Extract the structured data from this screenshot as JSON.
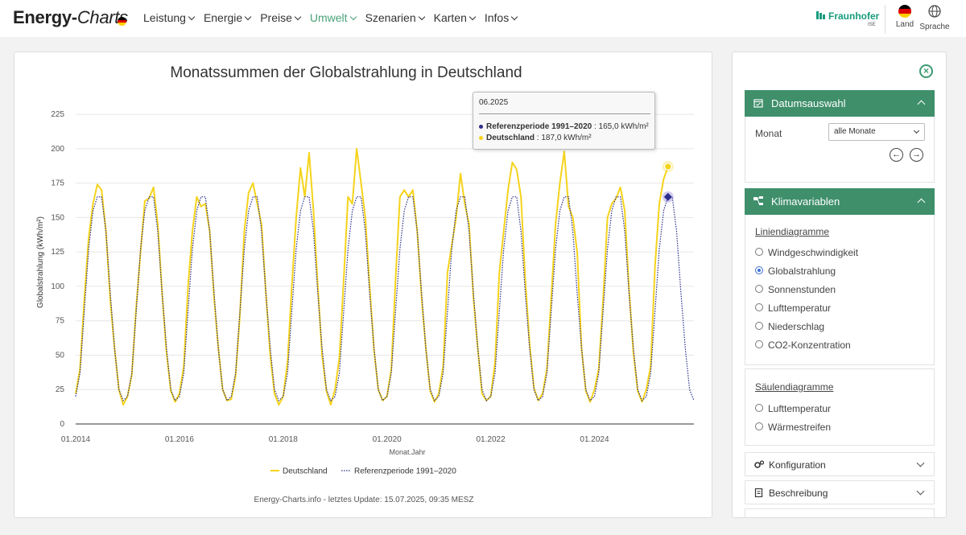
{
  "header": {
    "logo_main": "Energy-",
    "logo_italic": "Charts",
    "nav": [
      {
        "label": "Leistung",
        "active": false
      },
      {
        "label": "Energie",
        "active": false
      },
      {
        "label": "Preise",
        "active": false
      },
      {
        "label": "Umwelt",
        "active": true
      },
      {
        "label": "Szenarien",
        "active": false
      },
      {
        "label": "Karten",
        "active": false
      },
      {
        "label": "Infos",
        "active": false
      }
    ],
    "fraunhofer": "Fraunhofer",
    "fraunhofer_sub": "ISE",
    "land_label": "Land",
    "sprache_label": "Sprache",
    "accent_color": "#4aa37a",
    "fraunhofer_color": "#179c7d"
  },
  "chart_data": {
    "type": "line",
    "title": "Monatssummen der Globalstrahlung in Deutschland",
    "xlabel": "Monat.Jahr",
    "ylabel": "Globalstrahlung (kWh/m²)",
    "ylim": [
      0,
      235
    ],
    "yticks": [
      0,
      25,
      50,
      75,
      100,
      125,
      150,
      175,
      200,
      225
    ],
    "xticks": [
      "01.2014",
      "01.2016",
      "01.2018",
      "01.2020",
      "01.2022",
      "01.2024"
    ],
    "x_start": "01.2014",
    "x_end": "12.2025",
    "grid": true,
    "legend_position": "bottom",
    "series": [
      {
        "name": "Deutschland",
        "color": "#f5d31c",
        "style": "solid",
        "values": [
          22,
          40,
          90,
          135,
          160,
          174,
          170,
          140,
          90,
          55,
          25,
          14,
          20,
          36,
          85,
          125,
          162,
          164,
          172,
          145,
          95,
          52,
          24,
          16,
          22,
          42,
          100,
          140,
          165,
          158,
          160,
          140,
          92,
          55,
          25,
          17,
          18,
          35,
          80,
          140,
          168,
          175,
          160,
          145,
          95,
          50,
          22,
          14,
          20,
          45,
          100,
          150,
          186,
          165,
          197,
          155,
          100,
          50,
          24,
          14,
          25,
          48,
          105,
          165,
          160,
          200,
          175,
          150,
          100,
          54,
          25,
          17,
          20,
          40,
          105,
          165,
          170,
          165,
          170,
          140,
          92,
          55,
          24,
          16,
          22,
          42,
          110,
          130,
          150,
          182,
          160,
          145,
          92,
          55,
          22,
          17,
          20,
          45,
          110,
          140,
          170,
          190,
          185,
          165,
          105,
          58,
          26,
          17,
          22,
          40,
          92,
          145,
          175,
          198,
          158,
          150,
          125,
          55,
          24,
          16,
          25,
          40,
          90,
          150,
          160,
          164,
          172,
          155,
          98,
          52,
          24,
          16,
          25,
          42,
          115,
          160,
          178,
          187
        ]
      },
      {
        "name": "Referenzperiode 1991–2020",
        "color": "#2b2e8a",
        "style": "dotted",
        "values": [
          20,
          37,
          82,
          127,
          155,
          165,
          165,
          140,
          95,
          55,
          25,
          17,
          20,
          37,
          82,
          127,
          155,
          165,
          165,
          140,
          95,
          55,
          25,
          17,
          20,
          37,
          82,
          127,
          155,
          165,
          165,
          140,
          95,
          55,
          25,
          17,
          20,
          37,
          82,
          127,
          155,
          165,
          165,
          140,
          95,
          55,
          25,
          17,
          20,
          37,
          82,
          127,
          155,
          165,
          165,
          140,
          95,
          55,
          25,
          17,
          20,
          37,
          82,
          127,
          155,
          165,
          165,
          140,
          95,
          55,
          25,
          17,
          20,
          37,
          82,
          127,
          155,
          165,
          165,
          140,
          95,
          55,
          25,
          17,
          20,
          37,
          82,
          127,
          155,
          165,
          165,
          140,
          95,
          55,
          25,
          17,
          20,
          37,
          82,
          127,
          155,
          165,
          165,
          140,
          95,
          55,
          25,
          17,
          20,
          37,
          82,
          127,
          155,
          165,
          165,
          140,
          95,
          55,
          25,
          17,
          20,
          37,
          82,
          127,
          155,
          165,
          165,
          140,
          95,
          55,
          25,
          17,
          20,
          37,
          82,
          127,
          155,
          165,
          165,
          140,
          95,
          55,
          25,
          17
        ]
      }
    ],
    "highlight": {
      "index": 137
    }
  },
  "tooltip": {
    "header": "06.2025",
    "rows": [
      {
        "name": "Referenzperiode 1991–2020",
        "value": ": 165,0 kWh/m²",
        "color": "#2b2e8a"
      },
      {
        "name": "Deutschland",
        "value": ": 187,0 kWh/m²",
        "color": "#f5d31c"
      }
    ]
  },
  "footnote": "Energy-Charts.info - letztes Update: 15.07.2025, 09:35 MESZ",
  "side": {
    "datum": {
      "title": "Datumsauswahl",
      "monat_label": "Monat",
      "monat_value": "alle Monate"
    },
    "klima": {
      "title": "Klimavariablen",
      "line_title": "Liniendiagramme",
      "line_options": [
        "Windgeschwindigkeit",
        "Globalstrahlung",
        "Sonnenstunden",
        "Lufttemperatur",
        "Niederschlag",
        "CO2-Konzentration"
      ],
      "line_selected": 1,
      "bar_title": "Säulendiagramme",
      "bar_options": [
        "Lufttemperatur",
        "Wärmestreifen"
      ]
    },
    "konfiguration": "Konfiguration",
    "beschreibung": "Beschreibung",
    "header_color": "#3f8f6b"
  }
}
